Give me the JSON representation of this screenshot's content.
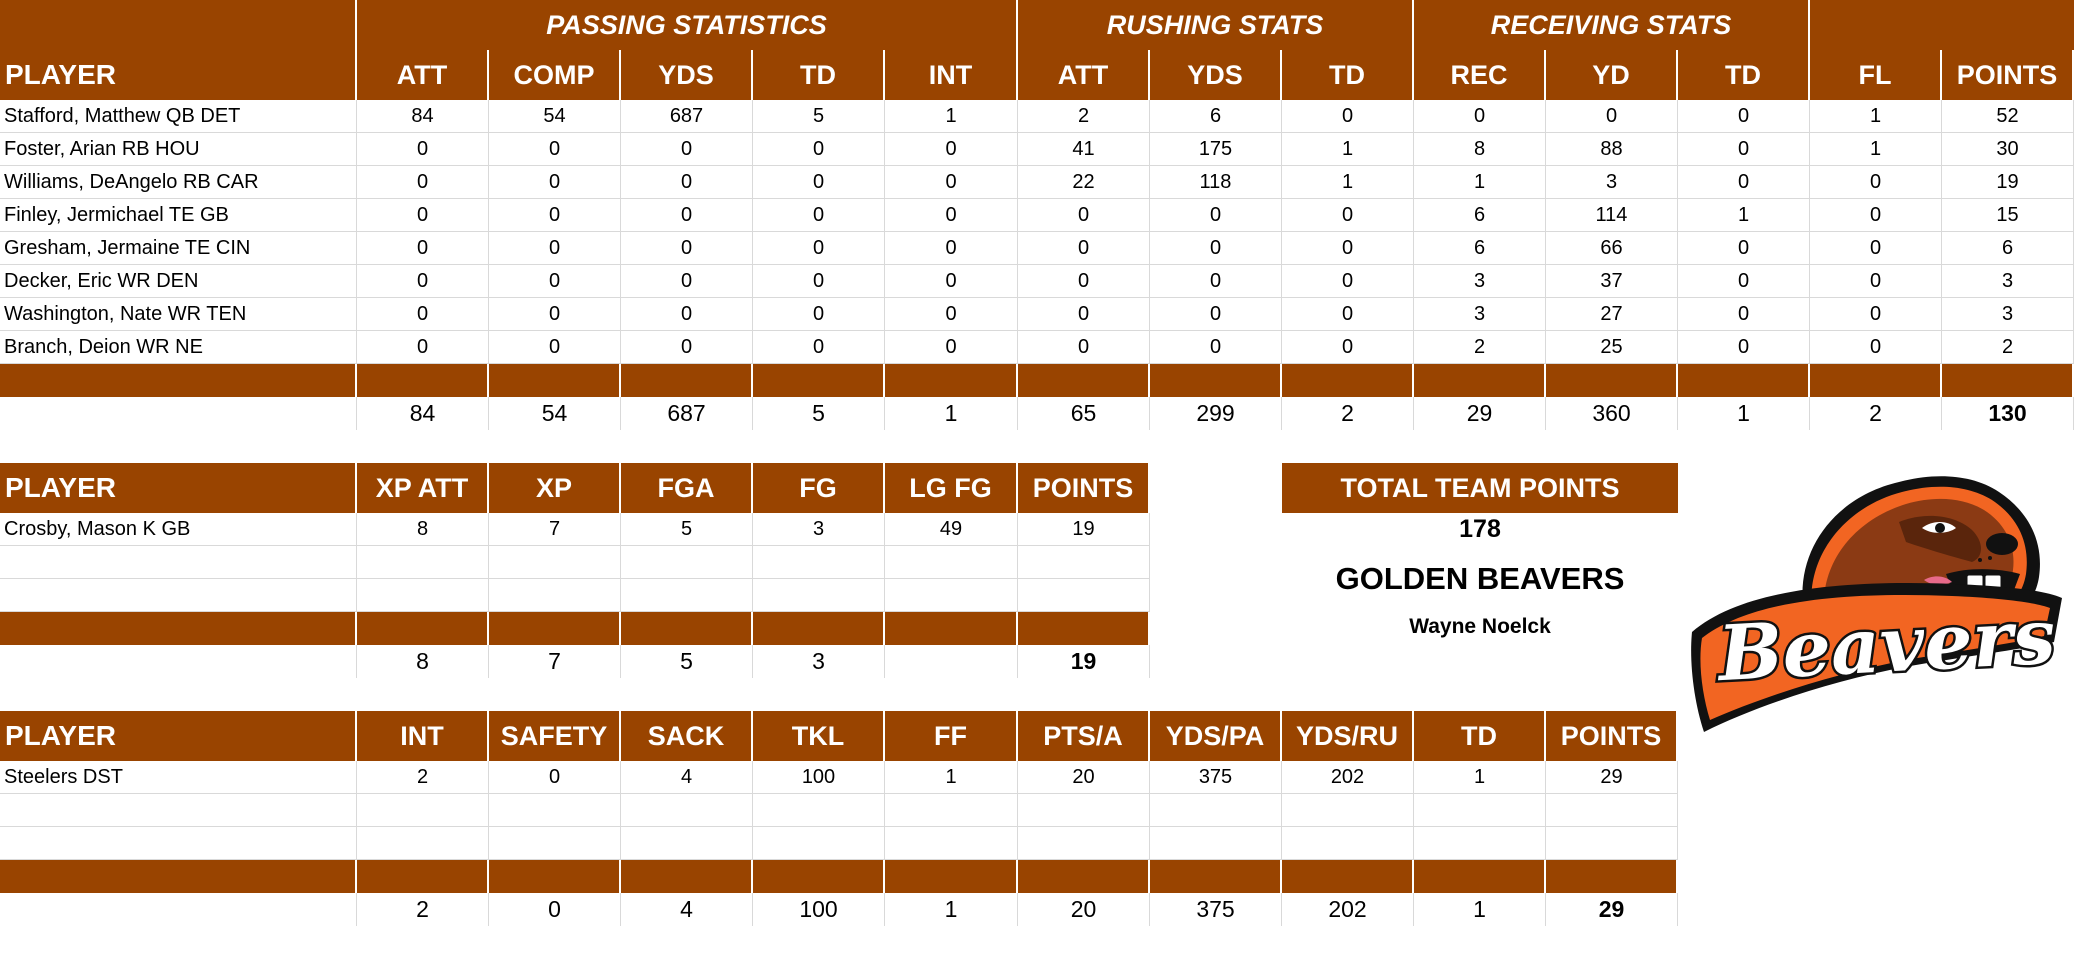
{
  "offense": {
    "group_headers": {
      "passing": "PASSING STATISTICS",
      "rushing": "RUSHING STATS",
      "receiving": "RECEIVING STATS"
    },
    "columns": [
      "PLAYER",
      "ATT",
      "COMP",
      "YDS",
      "TD",
      "INT",
      "ATT",
      "YDS",
      "TD",
      "REC",
      "YD",
      "TD",
      "FL",
      "POINTS"
    ],
    "rows": [
      [
        "Stafford, Matthew QB DET",
        "84",
        "54",
        "687",
        "5",
        "1",
        "2",
        "6",
        "0",
        "0",
        "0",
        "0",
        "1",
        "52"
      ],
      [
        "Foster, Arian RB HOU",
        "0",
        "0",
        "0",
        "0",
        "0",
        "41",
        "175",
        "1",
        "8",
        "88",
        "0",
        "1",
        "30"
      ],
      [
        "Williams, DeAngelo RB CAR",
        "0",
        "0",
        "0",
        "0",
        "0",
        "22",
        "118",
        "1",
        "1",
        "3",
        "0",
        "0",
        "19"
      ],
      [
        "Finley, Jermichael TE GB",
        "0",
        "0",
        "0",
        "0",
        "0",
        "0",
        "0",
        "0",
        "6",
        "114",
        "1",
        "0",
        "15"
      ],
      [
        "Gresham, Jermaine TE CIN",
        "0",
        "0",
        "0",
        "0",
        "0",
        "0",
        "0",
        "0",
        "6",
        "66",
        "0",
        "0",
        "6"
      ],
      [
        "Decker, Eric WR DEN",
        "0",
        "0",
        "0",
        "0",
        "0",
        "0",
        "0",
        "0",
        "3",
        "37",
        "0",
        "0",
        "3"
      ],
      [
        "Washington, Nate WR TEN",
        "0",
        "0",
        "0",
        "0",
        "0",
        "0",
        "0",
        "0",
        "3",
        "27",
        "0",
        "0",
        "3"
      ],
      [
        "Branch, Deion WR NE",
        "0",
        "0",
        "0",
        "0",
        "0",
        "0",
        "0",
        "0",
        "2",
        "25",
        "0",
        "0",
        "2"
      ]
    ],
    "totals": [
      "",
      "84",
      "54",
      "687",
      "5",
      "1",
      "65",
      "299",
      "2",
      "29",
      "360",
      "1",
      "2",
      "130"
    ]
  },
  "kicking": {
    "columns": [
      "PLAYER",
      "XP ATT",
      "XP",
      "FGA",
      "FG",
      "LG FG",
      "POINTS"
    ],
    "rows": [
      [
        "Crosby, Mason K GB",
        "8",
        "7",
        "5",
        "3",
        "49",
        "19"
      ],
      [
        "",
        "",
        "",
        "",
        "",
        "",
        ""
      ],
      [
        "",
        "",
        "",
        "",
        "",
        "",
        ""
      ]
    ],
    "totals": [
      "",
      "8",
      "7",
      "5",
      "3",
      "",
      "19"
    ]
  },
  "defense": {
    "columns": [
      "PLAYER",
      "INT",
      "SAFETY",
      "SACK",
      "TKL",
      "FF",
      "PTS/A",
      "YDS/PA",
      "YDS/RU",
      "TD",
      "POINTS"
    ],
    "rows": [
      [
        "Steelers DST",
        "2",
        "0",
        "4",
        "100",
        "1",
        "20",
        "375",
        "202",
        "1",
        "29"
      ],
      [
        "",
        "",
        "",
        "",
        "",
        "",
        "",
        "",
        "",
        "",
        ""
      ],
      [
        "",
        "",
        "",
        "",
        "",
        "",
        "",
        "",
        "",
        "",
        ""
      ]
    ],
    "totals": [
      "",
      "2",
      "0",
      "4",
      "100",
      "1",
      "20",
      "375",
      "202",
      "1",
      "29"
    ]
  },
  "team": {
    "total_label": "TOTAL TEAM POINTS",
    "total_points": "178",
    "team_name": "GOLDEN BEAVERS",
    "owner": "Wayne Noelck",
    "logo_text": "Beavers"
  },
  "colors": {
    "header": "#994400",
    "logo_orange": "#f26522",
    "logo_black": "#111111"
  }
}
